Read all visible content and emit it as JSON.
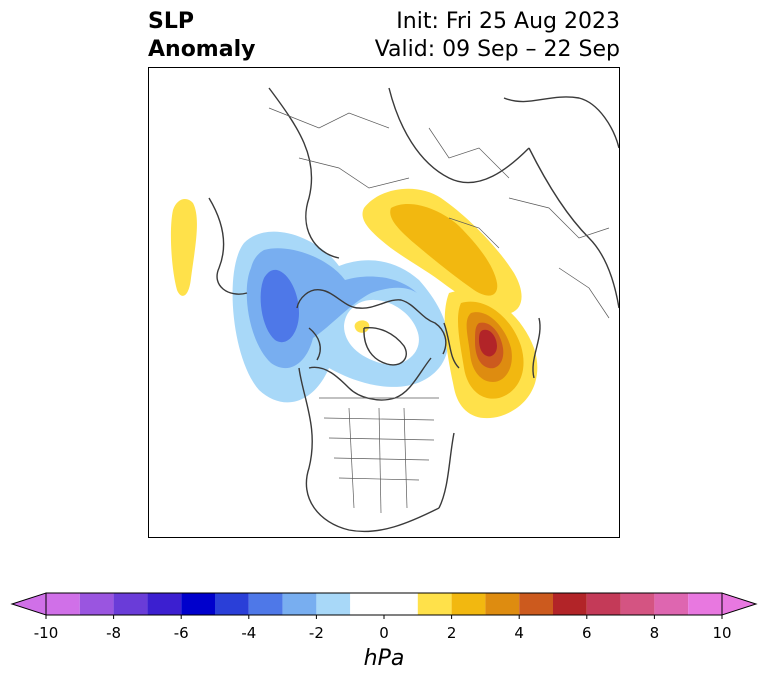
{
  "title": {
    "left_line1": "SLP",
    "left_line2": "Anomaly",
    "right_line1": "Init: Fri 25 Aug 2023",
    "right_line2": "Valid: 09 Sep – 22 Sep"
  },
  "colorbar": {
    "unit": "hPa",
    "ticks": [
      "-10",
      "-8",
      "-6",
      "-4",
      "-2",
      "0",
      "2",
      "4",
      "6",
      "8",
      "10"
    ],
    "tick_values": [
      -10,
      -8,
      -6,
      -4,
      -2,
      0,
      2,
      4,
      6,
      8,
      10
    ],
    "levels": [
      -10,
      -9,
      -8,
      -7,
      -6,
      -5,
      -4,
      -3,
      -2,
      -1,
      1,
      2,
      3,
      4,
      5,
      6,
      7,
      8,
      9,
      10
    ],
    "colors": [
      "#d070e8",
      "#9a55e0",
      "#6a3cd8",
      "#3c1fd0",
      "#0000cc",
      "#2a3fd8",
      "#4e78e8",
      "#78aef0",
      "#a8d8f8",
      "#ffffff",
      "#ffe14a",
      "#f2b810",
      "#de8c10",
      "#cc5a1e",
      "#b22428",
      "#c43a58",
      "#d45482",
      "#de66b0",
      "#e878e0"
    ],
    "extend": "both"
  },
  "map": {
    "projection": "north-polar-stereographic",
    "variable": "SLP anomaly",
    "features": [
      {
        "name": "negative-anomaly-arctic-canada",
        "min_hPa": -4
      },
      {
        "name": "positive-anomaly-scandinavia-russia",
        "max_hPa": 3
      },
      {
        "name": "positive-anomaly-north-pacific",
        "max_hPa": 6
      },
      {
        "name": "positive-anomaly-north-atlantic",
        "max_hPa": 1
      }
    ]
  }
}
